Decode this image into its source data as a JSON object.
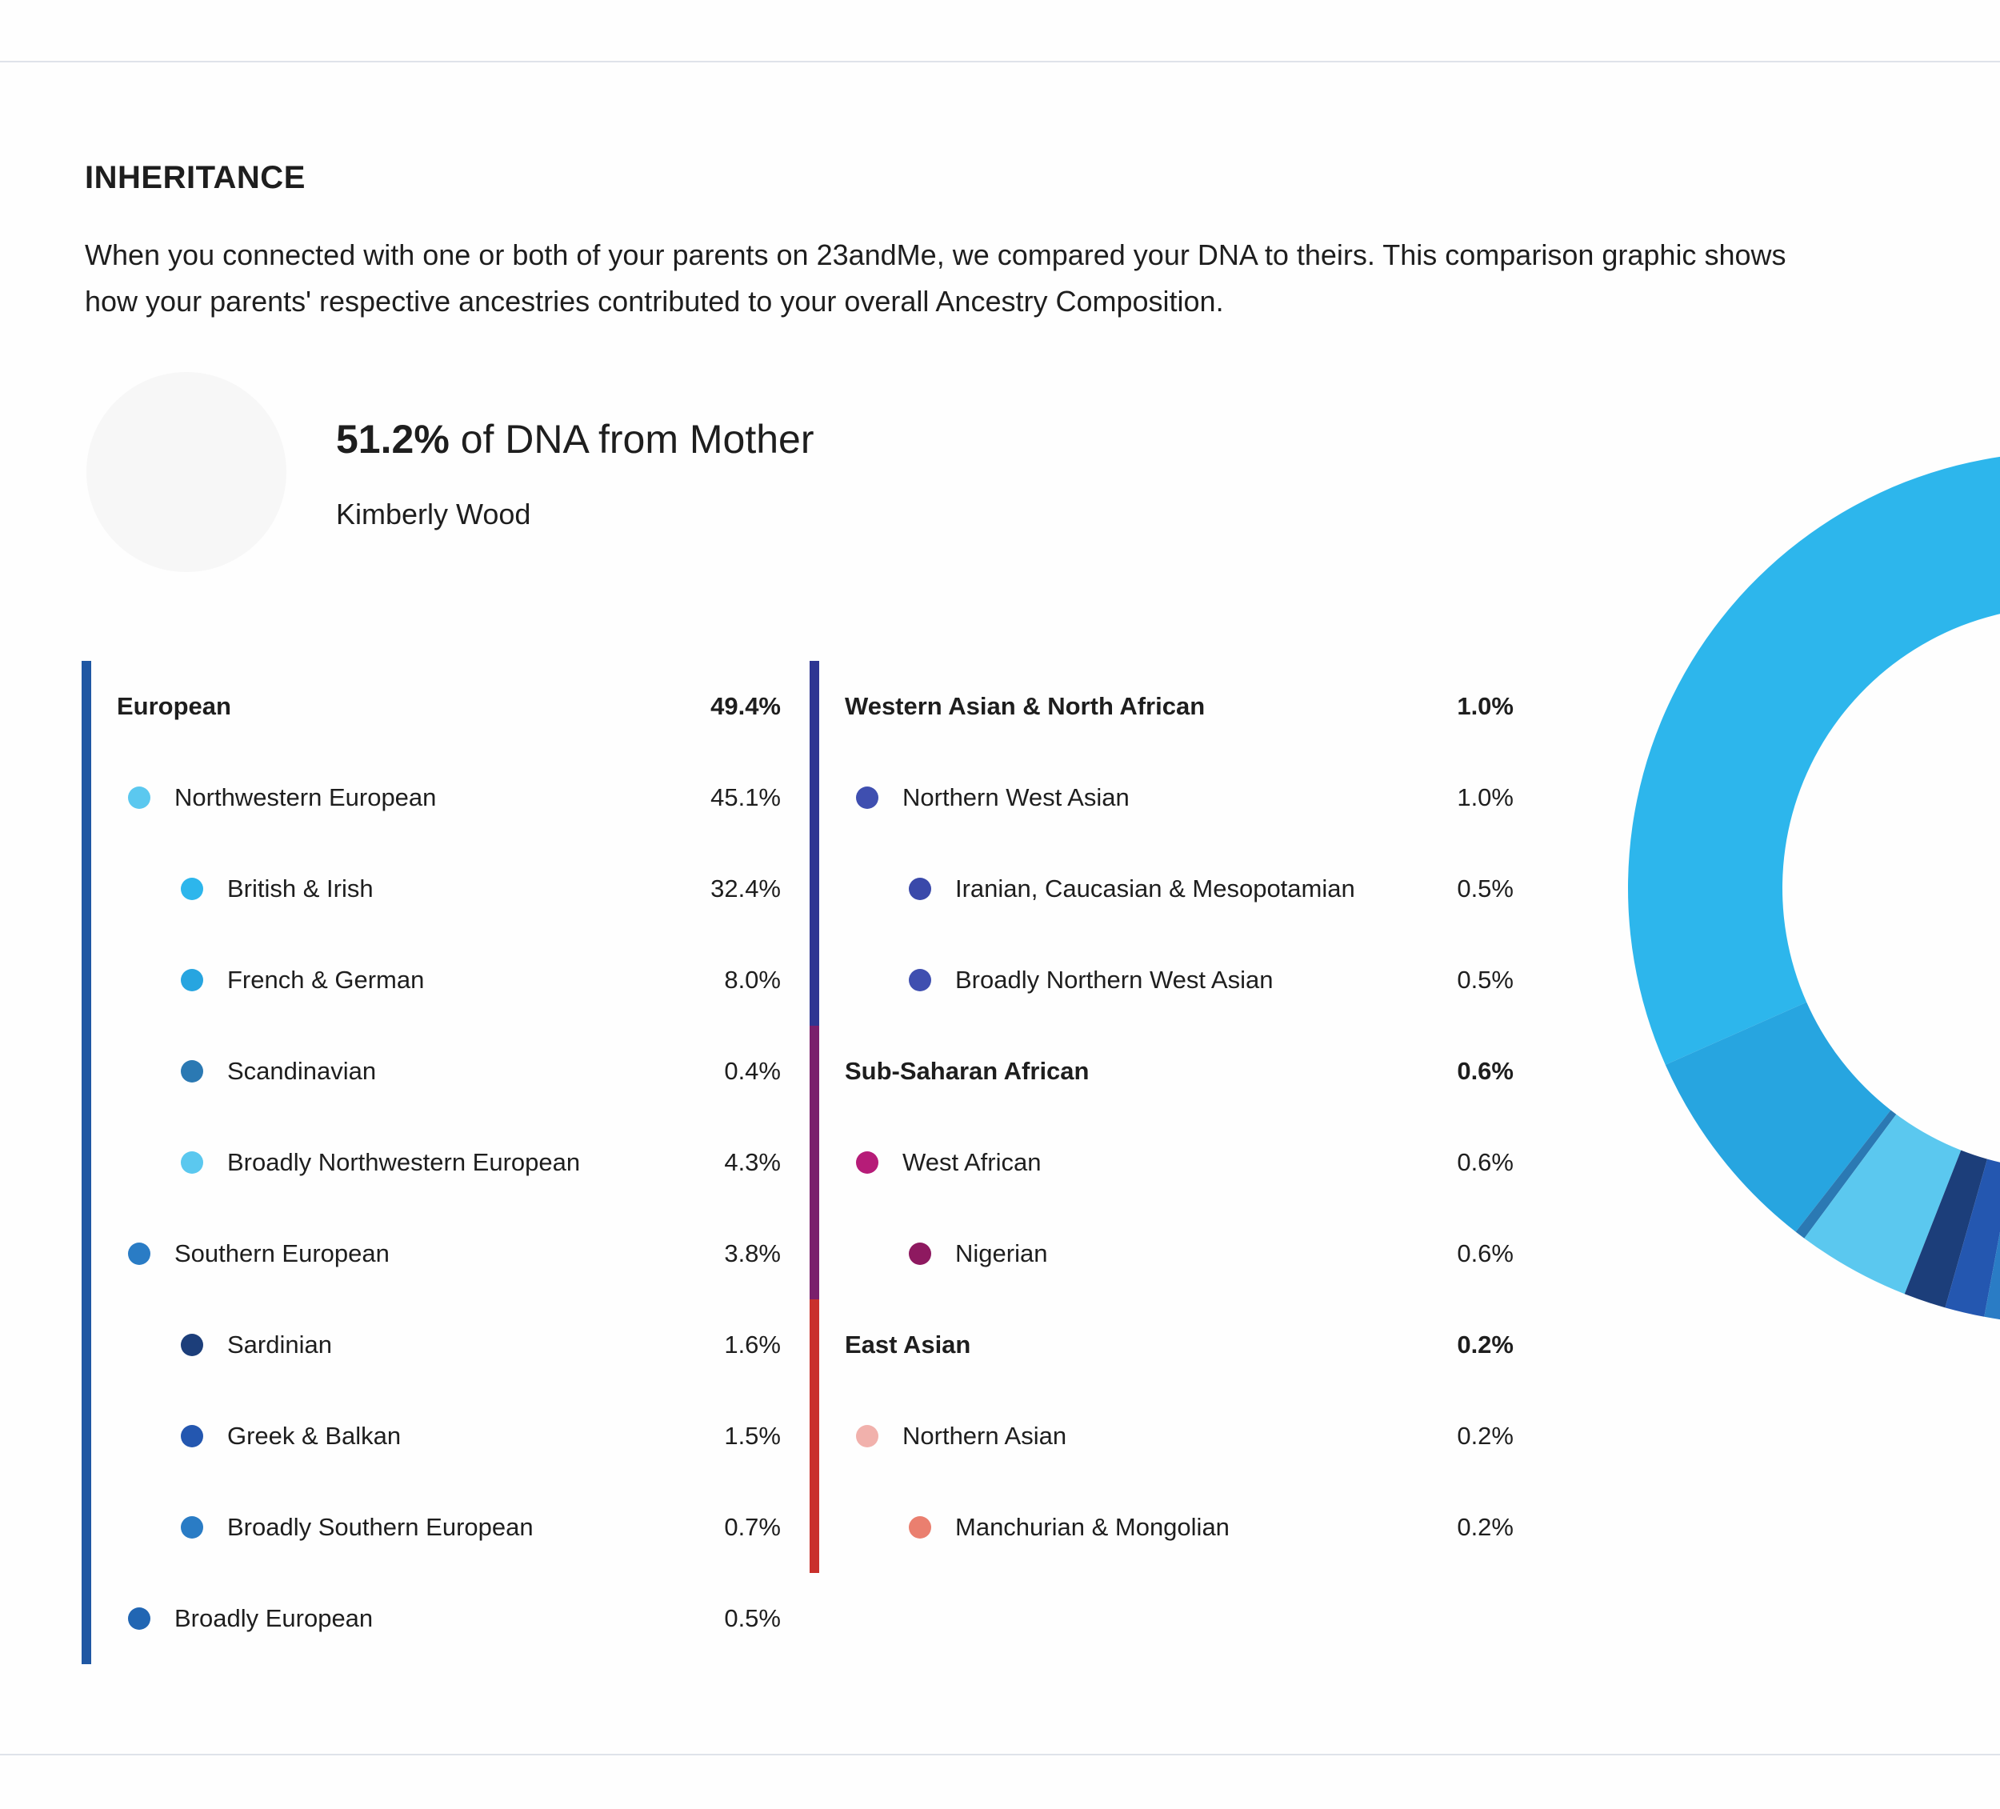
{
  "section_title": "INHERITANCE",
  "intro_text": "When you connected with one or both of your parents on 23andMe, we compared your DNA to theirs. This comparison graphic shows how your parents' respective ancestries contributed to your overall Ancestry Composition.",
  "heading": {
    "percent": "51.2%",
    "text": "of DNA from Mother"
  },
  "parent_name": "Kimberly Wood",
  "left_groups": [
    {
      "name": "European",
      "percent": "49.4%",
      "bar_color": "#1f57a3",
      "items": [
        {
          "label": "Northwestern European",
          "percent": "45.1%",
          "level": 1,
          "color": "#5bc8ef"
        },
        {
          "label": "British & Irish",
          "percent": "32.4%",
          "level": 2,
          "color": "#2db6ec"
        },
        {
          "label": "French & German",
          "percent": "8.0%",
          "level": 2,
          "color": "#27a5e0"
        },
        {
          "label": "Scandinavian",
          "percent": "0.4%",
          "level": 2,
          "color": "#2b79b3"
        },
        {
          "label": "Broadly Northwestern European",
          "percent": "4.3%",
          "level": 2,
          "color": "#5bc8ef"
        },
        {
          "label": "Southern European",
          "percent": "3.8%",
          "level": 1,
          "color": "#2a7cc5"
        },
        {
          "label": "Sardinian",
          "percent": "1.6%",
          "level": 2,
          "color": "#1c3e7a"
        },
        {
          "label": "Greek & Balkan",
          "percent": "1.5%",
          "level": 2,
          "color": "#2457b0"
        },
        {
          "label": "Broadly Southern European",
          "percent": "0.7%",
          "level": 2,
          "color": "#2a7cc5"
        },
        {
          "label": "Broadly European",
          "percent": "0.5%",
          "level": 1,
          "color": "#2166b3"
        }
      ]
    }
  ],
  "right_groups": [
    {
      "name": "Western Asian & North African",
      "percent": "1.0%",
      "bar_color": "#2e3592",
      "items": [
        {
          "label": "Northern West Asian",
          "percent": "1.0%",
          "level": 1,
          "color": "#3f4fb0"
        },
        {
          "label": "Iranian, Caucasian & Mesopotamian",
          "percent": "0.5%",
          "level": 2,
          "color": "#3a49aa"
        },
        {
          "label": "Broadly Northern West Asian",
          "percent": "0.5%",
          "level": 2,
          "color": "#3f4fb0"
        }
      ]
    },
    {
      "name": "Sub-Saharan African",
      "percent": "0.6%",
      "bar_color": "#7a1f6c",
      "items": [
        {
          "label": "West African",
          "percent": "0.6%",
          "level": 1,
          "color": "#b61c78"
        },
        {
          "label": "Nigerian",
          "percent": "0.6%",
          "level": 2,
          "color": "#8e1960"
        }
      ]
    },
    {
      "name": "East Asian",
      "percent": "0.2%",
      "bar_color": "#c9302c",
      "items": [
        {
          "label": "Northern Asian",
          "percent": "0.2%",
          "level": 1,
          "color": "#f1b1ac"
        },
        {
          "label": "Manchurian & Mongolian",
          "percent": "0.2%",
          "level": 2,
          "color": "#ea7f6f"
        }
      ]
    }
  ],
  "chart_data": {
    "type": "pie",
    "style": "donut",
    "categories": [
      "British & Irish",
      "French & German",
      "Scandinavian",
      "Broadly Northwestern European",
      "Sardinian",
      "Greek & Balkan",
      "Broadly Southern European",
      "Broadly European",
      "Iranian, Caucasian & Mesopotamian",
      "Broadly Northern West Asian",
      "Nigerian",
      "Manchurian & Mongolian"
    ],
    "values": [
      32.4,
      8.0,
      0.4,
      4.3,
      1.6,
      1.5,
      0.7,
      0.5,
      0.5,
      0.5,
      0.6,
      0.2
    ],
    "colors": [
      "#2db6ec",
      "#27a5e0",
      "#2b79b3",
      "#5bc8ef",
      "#1c3e7a",
      "#2457b0",
      "#2a7cc5",
      "#2166b3",
      "#3a49aa",
      "#3f4fb0",
      "#8e1960",
      "#ea7f6f"
    ],
    "total_scale": 102.4,
    "start": "top",
    "direction": "counterclockwise",
    "title": "",
    "xlabel": "",
    "ylabel": ""
  }
}
